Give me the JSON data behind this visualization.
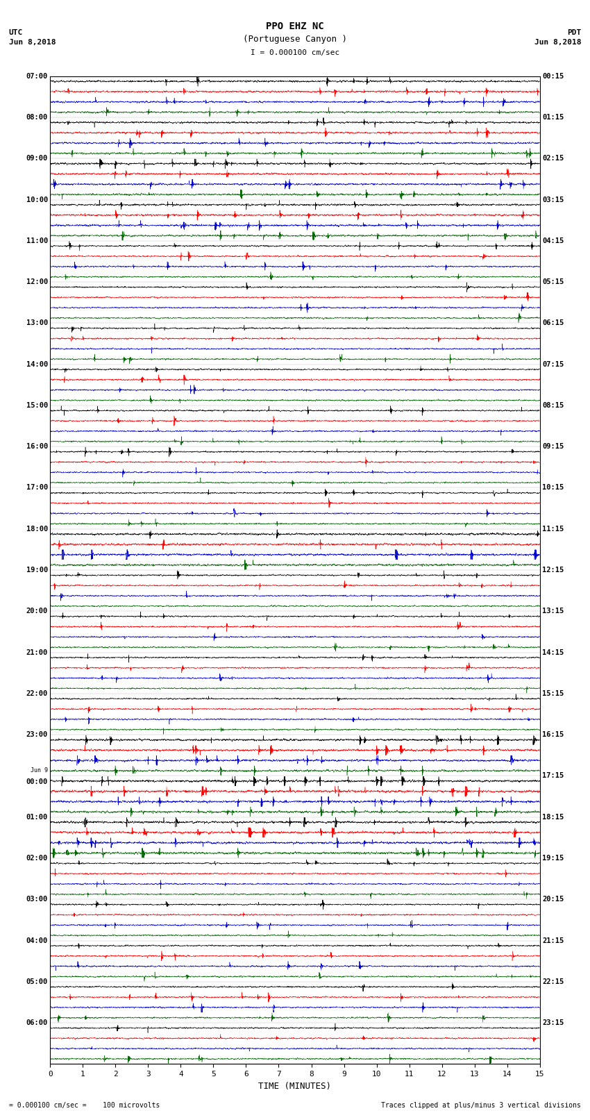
{
  "title_line1": "PPO EHZ NC",
  "title_line2": "(Portuguese Canyon )",
  "scale_text": "I = 0.000100 cm/sec",
  "utc_label": "UTC",
  "pdt_label": "PDT",
  "date_left": "Jun 8,2018",
  "date_right": "Jun 8,2018",
  "xlabel": "TIME (MINUTES)",
  "footer_left": "= 0.000100 cm/sec =    100 microvolts",
  "footer_right": "Traces clipped at plus/minus 3 vertical divisions",
  "left_times": [
    "07:00",
    "08:00",
    "09:00",
    "10:00",
    "11:00",
    "12:00",
    "13:00",
    "14:00",
    "15:00",
    "16:00",
    "17:00",
    "18:00",
    "19:00",
    "20:00",
    "21:00",
    "22:00",
    "23:00",
    "Jun 9|00:00",
    "01:00",
    "02:00",
    "03:00",
    "04:00",
    "05:00",
    "06:00"
  ],
  "right_times": [
    "00:15",
    "01:15",
    "02:15",
    "03:15",
    "04:15",
    "05:15",
    "06:15",
    "07:15",
    "08:15",
    "09:15",
    "10:15",
    "11:15",
    "12:15",
    "13:15",
    "14:15",
    "15:15",
    "16:15",
    "17:15",
    "18:15",
    "19:15",
    "20:15",
    "21:15",
    "22:15",
    "23:15"
  ],
  "n_rows": 24,
  "n_traces_per_row": 4,
  "color_cycle": [
    "#000000",
    "#ff0000",
    "#0000cc",
    "#006600"
  ],
  "bg_color": "#ffffff",
  "xlim": [
    0,
    15
  ],
  "xticks": [
    0,
    1,
    2,
    3,
    4,
    5,
    6,
    7,
    8,
    9,
    10,
    11,
    12,
    13,
    14,
    15
  ],
  "figsize": [
    8.5,
    16.13
  ],
  "dpi": 100,
  "lw": 0.35,
  "base_noise_std": 0.18,
  "n_points": 4000
}
